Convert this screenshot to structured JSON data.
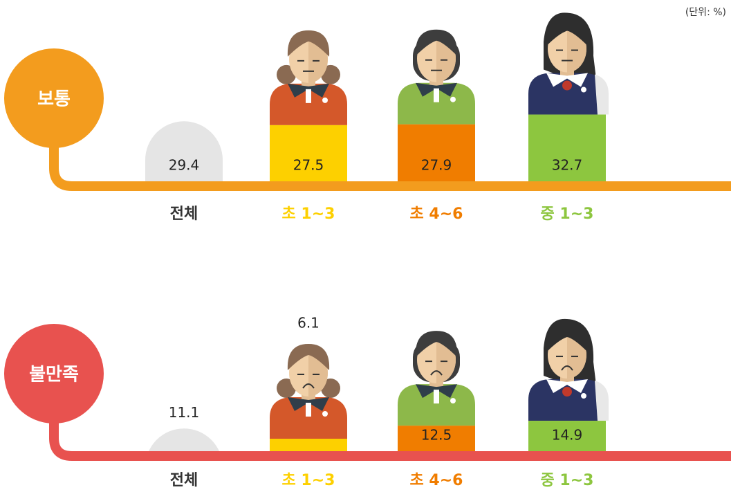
{
  "unit": "(단위: %)",
  "chart_data": [
    {
      "type": "bar",
      "title": "보통",
      "color": "#f39c1e",
      "categories": [
        "전체",
        "초 1~3",
        "초 4~6",
        "중 1~3"
      ],
      "values": [
        29.4,
        27.5,
        27.9,
        32.7
      ],
      "colors": [
        "#e5e5e5",
        "#fdd000",
        "#f07d00",
        "#8dc63f"
      ],
      "label_colors": [
        "#333333",
        "#fdd000",
        "#f07d00",
        "#8dc63f"
      ]
    },
    {
      "type": "bar",
      "title": "불만족",
      "color": "#e8524f",
      "categories": [
        "전체",
        "초 1~3",
        "초 4~6",
        "중 1~3"
      ],
      "values": [
        11.1,
        6.1,
        12.5,
        14.9
      ],
      "colors": [
        "#e5e5e5",
        "#fdd000",
        "#f07d00",
        "#8dc63f"
      ],
      "label_colors": [
        "#333333",
        "#fdd000",
        "#f07d00",
        "#8dc63f"
      ]
    }
  ]
}
